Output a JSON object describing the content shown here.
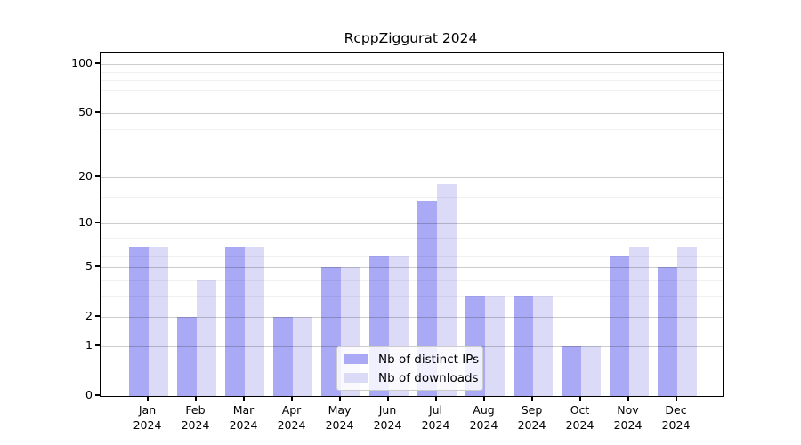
{
  "chart_data": {
    "type": "bar",
    "title": "RcppZiggurat 2024",
    "categories": [
      "Jan",
      "Feb",
      "Mar",
      "Apr",
      "May",
      "Jun",
      "Jul",
      "Aug",
      "Sep",
      "Oct",
      "Nov",
      "Dec"
    ],
    "year": "2024",
    "series": [
      {
        "name": "Nb of distinct IPs",
        "color": "#a9a9f6",
        "values": [
          7,
          2,
          7,
          2,
          5,
          6,
          14,
          3,
          3,
          1,
          6,
          5
        ]
      },
      {
        "name": "Nb of downloads",
        "color": "#dbdbf8",
        "values": [
          7,
          4,
          7,
          2,
          5,
          6,
          18,
          3,
          3,
          1,
          7,
          7
        ]
      }
    ],
    "y_axis": {
      "scale": "log1p",
      "major_ticks": [
        0,
        1,
        2,
        5,
        10,
        20,
        50,
        100
      ],
      "minor_gridlines": [
        3,
        4,
        6,
        7,
        8,
        9,
        15,
        30,
        40,
        60,
        70,
        80,
        90
      ],
      "ylim": [
        0,
        118
      ]
    },
    "x_axis": {
      "tick_label_format": "month over year, two lines"
    },
    "legend": {
      "position": "lower center"
    },
    "grid": "horizontal, drawn over translucent bars"
  }
}
